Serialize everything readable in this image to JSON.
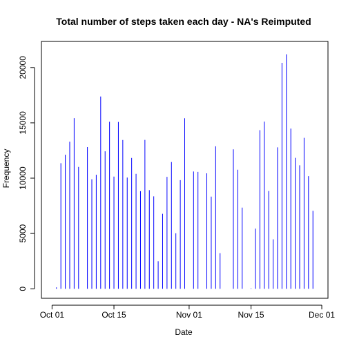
{
  "chart_data": {
    "type": "bar",
    "title": "Total number of steps taken each day - NA's Reimputed",
    "xlabel": "Date",
    "ylabel": "Frequency",
    "x_start": "2012-10-01",
    "xlim": [
      "2012-10-01",
      "2012-11-30"
    ],
    "ylim": [
      0,
      21500
    ],
    "x_ticks": [
      {
        "label": "Oct 01",
        "date": "2012-10-01"
      },
      {
        "label": "Oct 15",
        "date": "2012-10-15"
      },
      {
        "label": "Nov 01",
        "date": "2012-11-01"
      },
      {
        "label": "Nov 15",
        "date": "2012-11-15"
      },
      {
        "label": "Dec 01",
        "date": "2012-12-01"
      }
    ],
    "y_ticks": [
      0,
      5000,
      10000,
      15000,
      20000
    ],
    "dates": [
      "2012-10-01",
      "2012-10-02",
      "2012-10-03",
      "2012-10-04",
      "2012-10-05",
      "2012-10-06",
      "2012-10-07",
      "2012-10-08",
      "2012-10-09",
      "2012-10-10",
      "2012-10-11",
      "2012-10-12",
      "2012-10-13",
      "2012-10-14",
      "2012-10-15",
      "2012-10-16",
      "2012-10-17",
      "2012-10-18",
      "2012-10-19",
      "2012-10-20",
      "2012-10-21",
      "2012-10-22",
      "2012-10-23",
      "2012-10-24",
      "2012-10-25",
      "2012-10-26",
      "2012-10-27",
      "2012-10-28",
      "2012-10-29",
      "2012-10-30",
      "2012-10-31",
      "2012-11-01",
      "2012-11-02",
      "2012-11-03",
      "2012-11-04",
      "2012-11-05",
      "2012-11-06",
      "2012-11-07",
      "2012-11-08",
      "2012-11-09",
      "2012-11-10",
      "2012-11-11",
      "2012-11-12",
      "2012-11-13",
      "2012-11-14",
      "2012-11-15",
      "2012-11-16",
      "2012-11-17",
      "2012-11-18",
      "2012-11-19",
      "2012-11-20",
      "2012-11-21",
      "2012-11-22",
      "2012-11-23",
      "2012-11-24",
      "2012-11-25",
      "2012-11-26",
      "2012-11-27",
      "2012-11-28",
      "2012-11-29",
      "2012-11-30"
    ],
    "values": [
      0,
      126,
      11352,
      12116,
      13294,
      15420,
      11015,
      0,
      12811,
      9900,
      10304,
      17382,
      12426,
      15098,
      10139,
      15084,
      13452,
      10056,
      11829,
      10395,
      8821,
      13460,
      8918,
      8355,
      2492,
      6778,
      10119,
      11458,
      5018,
      9819,
      15414,
      0,
      10600,
      10571,
      0,
      10439,
      8334,
      12883,
      3219,
      0,
      0,
      12608,
      10765,
      7336,
      0,
      41,
      5441,
      14339,
      15110,
      8841,
      4472,
      12787,
      20427,
      21194,
      14478,
      11834,
      11162,
      13646,
      10183,
      7047,
      0
    ],
    "series_color": "#0000ff",
    "grid": false,
    "legend": "none"
  }
}
